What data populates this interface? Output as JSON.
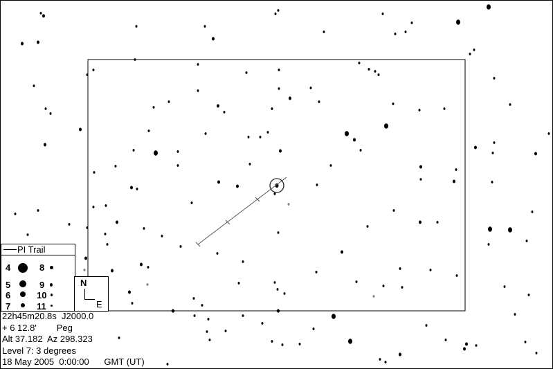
{
  "legend": {
    "title": "PI Trail",
    "magnitudes": [
      "4",
      "5",
      "6",
      "7",
      "8",
      "9",
      "10",
      "11"
    ]
  },
  "compass": {
    "north": "N",
    "east": "E"
  },
  "info": {
    "ra": "22h45m20.8s  J2000.0",
    "dec": "+ 6 12.8'        Peg",
    "altaz": "Alt 37.182  Az 298.323",
    "level": "Level 7: 3 degrees",
    "datetime": "18 May 2005  0:00:00      GMT (UT)"
  },
  "colors": {
    "background": "#ffffff",
    "stars": "#000000",
    "faint_stars": "#808080"
  }
}
